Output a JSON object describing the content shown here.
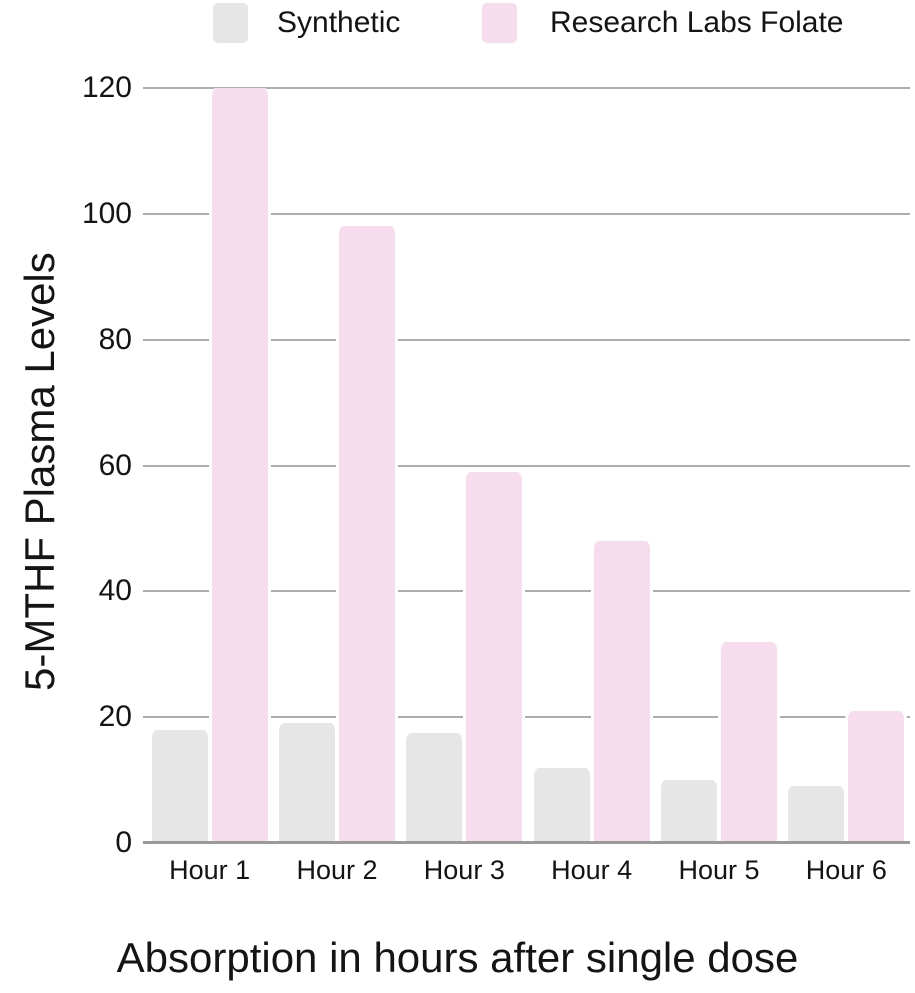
{
  "legend": {
    "items": [
      {
        "label": "Synthetic"
      },
      {
        "label": "Research Labs Folate"
      }
    ]
  },
  "chart_data": {
    "type": "bar",
    "title": "",
    "categories": [
      "Hour 1",
      "Hour 2",
      "Hour 3",
      "Hour 4",
      "Hour 5",
      "Hour 6"
    ],
    "series": [
      {
        "name": "Synthetic",
        "color": "#E7E6E6",
        "values": [
          18,
          19,
          17.5,
          12,
          10,
          9
        ]
      },
      {
        "name": "Research Labs Folate",
        "color": "#F6DCEC",
        "values": [
          120,
          98,
          59,
          48,
          32,
          21
        ]
      }
    ],
    "xlabel": "Absorption in hours after single dose",
    "ylabel": "5-MTHF Plasma Levels",
    "ylim": [
      0,
      120
    ],
    "yticks": [
      0,
      20,
      40,
      60,
      80,
      100,
      120
    ],
    "grid": true,
    "legend_position": "top",
    "colors": {
      "gridline": "#ACACAC",
      "axis_line": "#9A9A9A",
      "text": "#141414",
      "background": "#FFFFFF"
    }
  }
}
